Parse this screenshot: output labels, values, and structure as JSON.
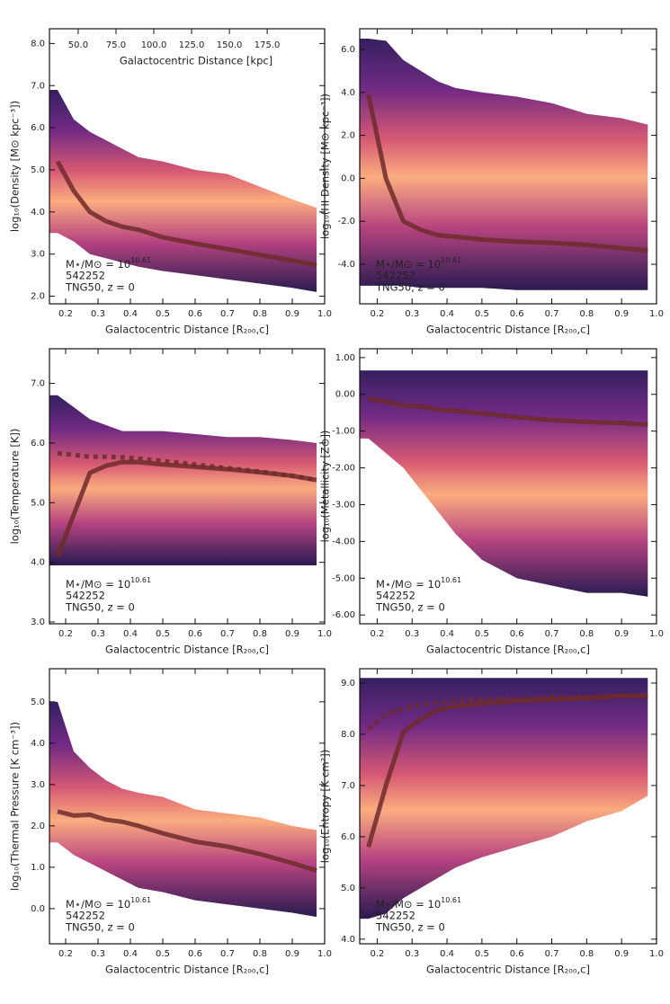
{
  "chart_data": [
    {
      "type": "line",
      "ylabel": "log₁₀(Density [M⊙ kpc⁻³])",
      "xlabel": "Galactocentric Distance [R₂₀₀,c]",
      "xlim": [
        0.15,
        1.0
      ],
      "xticks": [
        0.2,
        0.3,
        0.4,
        0.5,
        0.6,
        0.7,
        0.8,
        0.9,
        {
          "value": 1,
          "label": "1.0"
        }
      ],
      "ylim": [
        1.82,
        8.35
      ],
      "yticks": [
        {
          "value": 2,
          "label": "2.0"
        },
        {
          "value": 3,
          "label": "3.0"
        },
        {
          "value": 4,
          "label": "4.0"
        },
        {
          "value": 5,
          "label": "5.0"
        },
        {
          "value": 6,
          "label": "6.0"
        },
        {
          "value": 7,
          "label": "7.0"
        },
        {
          "value": 8,
          "label": "8.0"
        }
      ],
      "x2label": "Galactocentric Distance [kpc]",
      "x2lim": [
        31,
        213
      ],
      "x2ticks": [
        {
          "value": 50,
          "label": "50.0"
        },
        {
          "value": 75,
          "label": "75.0"
        },
        {
          "value": 100,
          "label": "100.0"
        },
        {
          "value": 125,
          "label": "125.0"
        },
        {
          "value": 150,
          "label": "150.0"
        },
        {
          "value": 175,
          "label": "175.0"
        }
      ],
      "x": [
        0.175,
        0.225,
        0.275,
        0.325,
        0.375,
        0.425,
        0.5,
        0.6,
        0.7,
        0.8,
        0.9,
        0.975
      ],
      "extent": {
        "upper": [
          6.9,
          6.2,
          5.9,
          5.7,
          5.5,
          5.3,
          5.2,
          5.0,
          4.9,
          4.6,
          4.3,
          4.1
        ],
        "lower": [
          3.5,
          3.3,
          3.0,
          2.9,
          2.8,
          2.7,
          2.6,
          2.5,
          2.4,
          2.3,
          2.2,
          2.1
        ]
      },
      "series": [
        {
          "color": "#6e2b2b",
          "linestyle": "solid",
          "values": [
            5.2,
            4.5,
            4.0,
            3.78,
            3.65,
            3.58,
            3.4,
            3.25,
            3.12,
            2.98,
            2.85,
            2.73
          ]
        }
      ],
      "annotation": {
        "mass_label": "M⋆/M⊙ = 10",
        "mass_exponent": "10.61",
        "id": "542252",
        "sim": "TNG50, z = 0"
      }
    },
    {
      "type": "line",
      "ylabel": "log₁₀(HI Density [M⊙ kpc⁻³])",
      "xlabel": "Galactocentric Distance [R₂₀₀,c]",
      "xlim": [
        0.15,
        1.0
      ],
      "xticks": [
        0.2,
        0.3,
        0.4,
        0.5,
        0.6,
        0.7,
        0.8,
        0.9,
        {
          "value": 1,
          "label": "1.0"
        }
      ],
      "ylim": [
        -5.84,
        6.96
      ],
      "yticks": [
        {
          "value": -4,
          "label": "-4.0"
        },
        {
          "value": -2,
          "label": "-2.0"
        },
        {
          "value": 0,
          "label": "0.0"
        },
        {
          "value": 2,
          "label": "2.0"
        },
        {
          "value": 4,
          "label": "4.0"
        },
        {
          "value": 6,
          "label": "6.0"
        }
      ],
      "x": [
        0.175,
        0.225,
        0.275,
        0.325,
        0.375,
        0.425,
        0.5,
        0.6,
        0.7,
        0.8,
        0.9,
        0.975
      ],
      "extent": {
        "upper": [
          6.5,
          6.4,
          5.5,
          5.0,
          4.5,
          4.2,
          4.0,
          3.8,
          3.5,
          3.0,
          2.8,
          2.5
        ],
        "lower": [
          -5.0,
          -5.0,
          -5.0,
          -5.1,
          -5.1,
          -5.1,
          -5.1,
          -5.2,
          -5.2,
          -5.2,
          -5.2,
          -5.2
        ]
      },
      "series": [
        {
          "color": "#6e2b2b",
          "linestyle": "solid",
          "values": [
            3.9,
            0.0,
            -2.0,
            -2.4,
            -2.65,
            -2.72,
            -2.85,
            -2.95,
            -3.0,
            -3.1,
            -3.25,
            -3.35
          ]
        }
      ],
      "annotation": {
        "mass_label": "M⋆/M⊙ = 10",
        "mass_exponent": "10.61",
        "id": "542252",
        "sim": "TNG50, z = 0"
      }
    },
    {
      "type": "line",
      "ylabel": "log₁₀(Temperature [K])",
      "xlabel": "Galactocentric Distance [R₂₀₀,c]",
      "xlim": [
        0.15,
        1.0
      ],
      "xticks": [
        0.2,
        0.3,
        0.4,
        0.5,
        0.6,
        0.7,
        0.8,
        0.9,
        {
          "value": 1,
          "label": "1.0"
        }
      ],
      "ylim": [
        2.97,
        7.58
      ],
      "yticks": [
        {
          "value": 3,
          "label": "3.0"
        },
        {
          "value": 4,
          "label": "4.0"
        },
        {
          "value": 5,
          "label": "5.0"
        },
        {
          "value": 6,
          "label": "6.0"
        },
        {
          "value": 7,
          "label": "7.0"
        }
      ],
      "x": [
        0.175,
        0.225,
        0.275,
        0.325,
        0.375,
        0.425,
        0.5,
        0.6,
        0.7,
        0.8,
        0.9,
        0.975
      ],
      "extent": {
        "upper": [
          6.8,
          6.6,
          6.4,
          6.3,
          6.2,
          6.2,
          6.2,
          6.15,
          6.1,
          6.1,
          6.05,
          6.0
        ],
        "lower": [
          3.95,
          3.95,
          3.95,
          3.95,
          3.95,
          3.95,
          3.95,
          3.95,
          3.95,
          3.95,
          3.95,
          3.95
        ]
      },
      "series": [
        {
          "color": "#6e2b2b",
          "linestyle": "solid",
          "values": [
            4.1,
            4.8,
            5.5,
            5.62,
            5.68,
            5.68,
            5.64,
            5.6,
            5.56,
            5.51,
            5.45,
            5.38
          ]
        },
        {
          "color": "#6e2b2b",
          "linestyle": "dotted",
          "values": [
            5.83,
            5.8,
            5.77,
            5.77,
            5.76,
            5.74,
            5.7,
            5.64,
            5.58,
            5.52,
            5.45,
            5.38
          ]
        }
      ],
      "annotation": {
        "mass_label": "M⋆/M⊙ = 10",
        "mass_exponent": "10.61",
        "id": "542252",
        "sim": "TNG50, z = 0"
      }
    },
    {
      "type": "line",
      "ylabel": "log₁₀(Metallicity [Z⊙])",
      "xlabel": "Galactocentric Distance [R₂₀₀,c]",
      "xlim": [
        0.15,
        1.0
      ],
      "xticks": [
        0.2,
        0.3,
        0.4,
        0.5,
        0.6,
        0.7,
        0.8,
        0.9,
        {
          "value": 1,
          "label": "1.0"
        }
      ],
      "ylim": [
        -6.24,
        1.24
      ],
      "yticks": [
        {
          "value": -6,
          "label": "-6.00"
        },
        {
          "value": -5,
          "label": "-5.00"
        },
        {
          "value": -4,
          "label": "-4.00"
        },
        {
          "value": -3,
          "label": "-3.00"
        },
        {
          "value": -2,
          "label": "-2.00"
        },
        {
          "value": -1,
          "label": "-1.00"
        },
        {
          "value": 0,
          "label": "0.00"
        },
        {
          "value": 1,
          "label": "1.00"
        }
      ],
      "x": [
        0.175,
        0.225,
        0.275,
        0.325,
        0.375,
        0.425,
        0.5,
        0.6,
        0.7,
        0.8,
        0.9,
        0.975
      ],
      "extent": {
        "upper": [
          0.65,
          0.65,
          0.65,
          0.65,
          0.65,
          0.65,
          0.65,
          0.65,
          0.65,
          0.65,
          0.65,
          0.65
        ],
        "lower": [
          -1.2,
          -1.6,
          -2.0,
          -2.6,
          -3.2,
          -3.8,
          -4.5,
          -5.0,
          -5.2,
          -5.4,
          -5.4,
          -5.5
        ]
      },
      "series": [
        {
          "color": "#6e2b2b",
          "linestyle": "solid",
          "values": [
            -0.12,
            -0.2,
            -0.3,
            -0.33,
            -0.42,
            -0.45,
            -0.52,
            -0.62,
            -0.7,
            -0.75,
            -0.78,
            -0.82
          ]
        }
      ],
      "annotation": {
        "mass_label": "M⋆/M⊙ = 10",
        "mass_exponent": "10.61",
        "id": "542252",
        "sim": "TNG50, z = 0"
      }
    },
    {
      "type": "line",
      "ylabel": "log₁₀(Thermal Pressure [K cm⁻³])",
      "xlabel": "Galactocentric Distance [R₂₀₀,c]",
      "xlim": [
        0.15,
        1.0
      ],
      "xticks": [
        0.2,
        0.3,
        0.4,
        0.5,
        0.6,
        0.7,
        0.8,
        0.9,
        {
          "value": 1,
          "label": "1.0"
        }
      ],
      "ylim": [
        -0.85,
        5.8
      ],
      "yticks": [
        {
          "value": 0,
          "label": "0.0"
        },
        {
          "value": 1,
          "label": "1.0"
        },
        {
          "value": 2,
          "label": "2.0"
        },
        {
          "value": 3,
          "label": "3.0"
        },
        {
          "value": 4,
          "label": "4.0"
        },
        {
          "value": 5,
          "label": "5.0"
        }
      ],
      "x": [
        0.175,
        0.225,
        0.275,
        0.325,
        0.375,
        0.425,
        0.5,
        0.6,
        0.7,
        0.8,
        0.9,
        0.975
      ],
      "extent": {
        "upper": [
          5.0,
          3.8,
          3.4,
          3.1,
          2.9,
          2.8,
          2.7,
          2.4,
          2.3,
          2.2,
          2.0,
          1.9
        ],
        "lower": [
          1.6,
          1.3,
          1.1,
          0.9,
          0.7,
          0.5,
          0.4,
          0.2,
          0.1,
          0.0,
          -0.1,
          -0.2
        ]
      },
      "series": [
        {
          "color": "#6e2b2b",
          "linestyle": "solid",
          "values": [
            2.35,
            2.25,
            2.27,
            2.15,
            2.1,
            2.0,
            1.82,
            1.62,
            1.5,
            1.32,
            1.1,
            0.92
          ]
        }
      ],
      "annotation": {
        "mass_label": "M⋆/M⊙ = 10",
        "mass_exponent": "10.61",
        "id": "542252",
        "sim": "TNG50, z = 0"
      }
    },
    {
      "type": "line",
      "ylabel": "log₁₀(Entropy [K cm²])",
      "xlabel": "Galactocentric Distance [R₂₀₀,c]",
      "xlim": [
        0.15,
        1.0
      ],
      "xticks": [
        0.2,
        0.3,
        0.4,
        0.5,
        0.6,
        0.7,
        0.8,
        0.9,
        {
          "value": 1,
          "label": "1.0"
        }
      ],
      "ylim": [
        3.91,
        9.28
      ],
      "yticks": [
        {
          "value": 4,
          "label": "4.0"
        },
        {
          "value": 5,
          "label": "5.0"
        },
        {
          "value": 6,
          "label": "6.0"
        },
        {
          "value": 7,
          "label": "7.0"
        },
        {
          "value": 8,
          "label": "8.0"
        },
        {
          "value": 9,
          "label": "9.0"
        }
      ],
      "x": [
        0.175,
        0.225,
        0.275,
        0.325,
        0.375,
        0.425,
        0.5,
        0.6,
        0.7,
        0.8,
        0.9,
        0.975
      ],
      "extent": {
        "upper": [
          9.1,
          9.1,
          9.1,
          9.1,
          9.1,
          9.1,
          9.1,
          9.1,
          9.1,
          9.1,
          9.1,
          9.1
        ],
        "lower": [
          4.4,
          4.5,
          4.8,
          5.0,
          5.2,
          5.4,
          5.6,
          5.8,
          6.0,
          6.3,
          6.5,
          6.8
        ]
      },
      "series": [
        {
          "color": "#6e2b2b",
          "linestyle": "solid",
          "values": [
            5.8,
            7.0,
            8.05,
            8.3,
            8.48,
            8.55,
            8.6,
            8.65,
            8.68,
            8.7,
            8.75,
            8.75
          ]
        },
        {
          "color": "#6e2b2b",
          "linestyle": "dotted",
          "values": [
            8.1,
            8.4,
            8.5,
            8.58,
            8.62,
            8.66,
            8.68,
            8.7,
            8.72,
            8.73,
            8.75,
            8.77
          ]
        }
      ],
      "annotation": {
        "mass_label": "M⋆/M⊙ = 10",
        "mass_exponent": "10.61",
        "id": "542252",
        "sim": "TNG50, z = 0"
      }
    }
  ]
}
